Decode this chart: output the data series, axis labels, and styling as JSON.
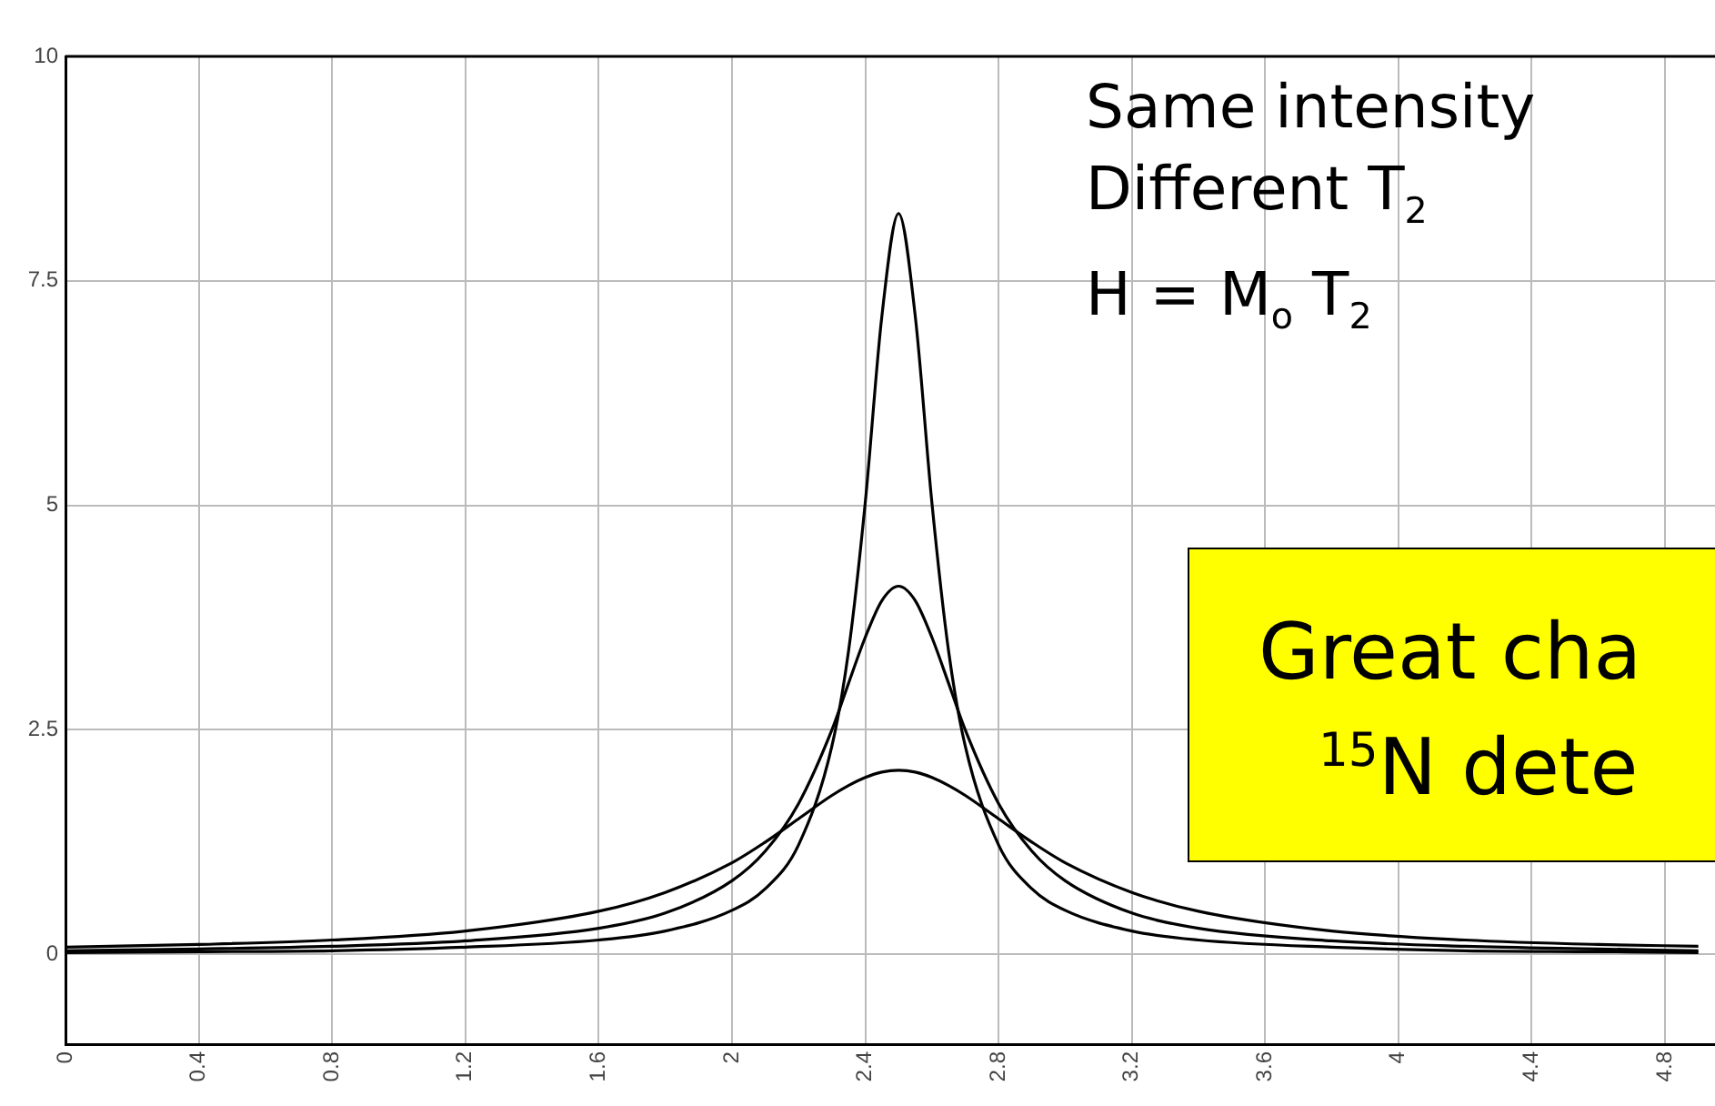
{
  "chart_data": {
    "type": "line",
    "x": [
      0,
      0.4,
      0.8,
      1.2,
      1.6,
      1.8,
      2.0,
      2.1,
      2.2,
      2.3,
      2.35,
      2.4,
      2.45,
      2.5,
      2.55,
      2.6,
      2.65,
      2.7,
      2.8,
      2.9,
      3.0,
      3.2,
      3.4,
      3.8,
      4.2,
      4.6,
      4.9
    ],
    "series": [
      {
        "color": "#000000",
        "values": [
          0.08,
          0.11,
          0.16,
          0.26,
          0.48,
          0.69,
          1.02,
          1.25,
          1.51,
          1.77,
          1.88,
          1.97,
          2.03,
          2.05,
          2.03,
          1.97,
          1.88,
          1.77,
          1.51,
          1.25,
          1.02,
          0.69,
          0.48,
          0.26,
          0.16,
          0.11,
          0.09
        ]
      },
      {
        "color": "#000000",
        "values": [
          0.04,
          0.06,
          0.09,
          0.15,
          0.29,
          0.46,
          0.82,
          1.15,
          1.68,
          2.5,
          3.02,
          3.53,
          3.94,
          4.1,
          3.94,
          3.53,
          3.02,
          2.5,
          1.68,
          1.15,
          0.82,
          0.46,
          0.29,
          0.15,
          0.09,
          0.06,
          0.04
        ]
      },
      {
        "color": "#000000",
        "values": [
          0.02,
          0.03,
          0.04,
          0.08,
          0.16,
          0.26,
          0.49,
          0.73,
          1.22,
          2.32,
          3.38,
          5.03,
          7.11,
          8.25,
          7.11,
          5.03,
          3.38,
          2.32,
          1.22,
          0.73,
          0.49,
          0.26,
          0.16,
          0.08,
          0.04,
          0.03,
          0.02
        ]
      }
    ],
    "xlim": [
      0,
      4.95
    ],
    "xticks": [
      0,
      0.4,
      0.8,
      1.2,
      1.6,
      2,
      2.4,
      2.8,
      3.2,
      3.6,
      4,
      4.4,
      4.8
    ],
    "ylim": [
      -1,
      10
    ],
    "yticks": [
      0,
      2.5,
      5,
      7.5,
      10
    ],
    "grid": true,
    "legend": false,
    "marker": "none",
    "line_style": "solid",
    "annotations": [
      "Same intensity",
      "Different T$_{2}$",
      "H = M$_{o}$ T$_{2}$",
      "Great cha",
      "$^{15}$N dete"
    ]
  }
}
